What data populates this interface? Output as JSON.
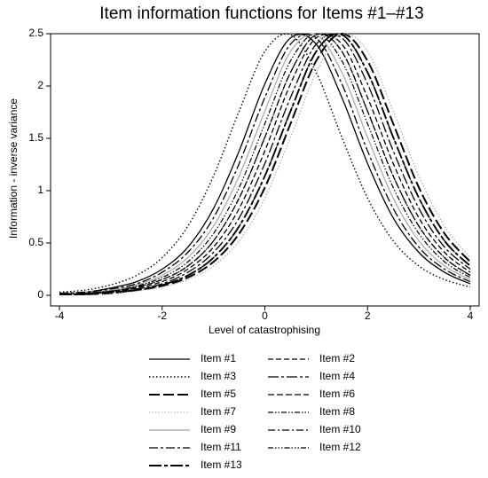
{
  "chart_data": {
    "type": "line",
    "title": "Item information functions for Items #1–#13",
    "x_label": "Level of catastrophising",
    "y_label": "Information - inverse variance",
    "x": [
      -4,
      -3.5,
      -3,
      -2.5,
      -2,
      -1.5,
      -1,
      -0.5,
      0,
      0.5,
      1,
      1.5,
      2,
      2.5,
      3,
      3.5,
      4
    ],
    "xlim": [
      -4,
      4
    ],
    "xticks": [
      -4,
      -2,
      0,
      2,
      4
    ],
    "ylim": [
      0,
      2.5
    ],
    "yticks": [
      0,
      0.5,
      1,
      1.5,
      2,
      2.5
    ],
    "grid": false,
    "series": [
      {
        "name": "Item #1",
        "color": "#000000",
        "values": [
          0.02,
          0.03,
          0.07,
          0.13,
          0.25,
          0.46,
          0.83,
          1.38,
          2.02,
          2.46,
          2.4,
          1.89,
          1.26,
          0.74,
          0.41,
          0.22,
          0.11
        ]
      },
      {
        "name": "Item #2",
        "color": "#000000",
        "values": [
          0.01,
          0.02,
          0.03,
          0.07,
          0.13,
          0.25,
          0.46,
          0.83,
          1.38,
          2.02,
          2.46,
          2.4,
          1.89,
          1.26,
          0.74,
          0.41,
          0.22
        ]
      },
      {
        "name": "Item #3",
        "color": "#000000",
        "values": [
          0.03,
          0.05,
          0.1,
          0.19,
          0.36,
          0.66,
          1.14,
          1.76,
          2.33,
          2.49,
          2.13,
          1.51,
          0.93,
          0.52,
          0.28,
          0.15,
          0.08
        ]
      },
      {
        "name": "Item #4",
        "color": "#000000",
        "values": [
          0.01,
          0.02,
          0.03,
          0.06,
          0.11,
          0.22,
          0.41,
          0.74,
          1.26,
          1.89,
          2.4,
          2.46,
          2.02,
          1.38,
          0.83,
          0.46,
          0.25
        ]
      },
      {
        "name": "Item #5",
        "color": "#000000",
        "values": [
          0.01,
          0.01,
          0.02,
          0.05,
          0.09,
          0.17,
          0.32,
          0.59,
          1.03,
          1.64,
          2.24,
          2.5,
          2.24,
          1.64,
          1.03,
          0.59,
          0.32
        ]
      },
      {
        "name": "Item #6",
        "color": "#000000",
        "values": [
          0.01,
          0.02,
          0.04,
          0.08,
          0.15,
          0.28,
          0.52,
          0.93,
          1.51,
          2.13,
          2.49,
          2.33,
          1.76,
          1.14,
          0.66,
          0.36,
          0.19
        ]
      },
      {
        "name": "Item #7",
        "color": "#a6a6a6",
        "values": [
          0.01,
          0.01,
          0.02,
          0.04,
          0.08,
          0.15,
          0.28,
          0.52,
          0.93,
          1.51,
          2.13,
          2.49,
          2.33,
          1.76,
          1.14,
          0.66,
          0.36
        ]
      },
      {
        "name": "Item #8",
        "color": "#000000",
        "values": [
          0.01,
          0.02,
          0.05,
          0.09,
          0.17,
          0.32,
          0.59,
          1.03,
          1.64,
          2.24,
          2.5,
          2.24,
          1.64,
          1.03,
          0.59,
          0.32,
          0.17
        ]
      },
      {
        "name": "Item #9",
        "color": "#b0b0b0",
        "values": [
          0.01,
          0.03,
          0.05,
          0.1,
          0.19,
          0.36,
          0.66,
          1.14,
          1.76,
          2.33,
          2.49,
          2.13,
          1.51,
          0.93,
          0.52,
          0.28,
          0.15
        ]
      },
      {
        "name": "Item #10",
        "color": "#000000",
        "values": [
          0.01,
          0.01,
          0.03,
          0.05,
          0.1,
          0.19,
          0.36,
          0.66,
          1.14,
          1.76,
          2.33,
          2.49,
          2.13,
          1.51,
          0.93,
          0.52,
          0.28
        ]
      },
      {
        "name": "Item #11",
        "color": "#000000",
        "values": [
          0.02,
          0.03,
          0.06,
          0.11,
          0.22,
          0.41,
          0.74,
          1.26,
          1.89,
          2.4,
          2.46,
          2.02,
          1.38,
          0.83,
          0.46,
          0.25,
          0.13
        ]
      },
      {
        "name": "Item #12",
        "color": "#000000",
        "values": [
          0.01,
          0.02,
          0.04,
          0.08,
          0.15,
          0.28,
          0.52,
          0.93,
          1.51,
          2.13,
          2.49,
          2.33,
          1.76,
          1.14,
          0.66,
          0.36,
          0.19
        ]
      },
      {
        "name": "Item #13",
        "color": "#000000",
        "values": [
          0.01,
          0.01,
          0.03,
          0.05,
          0.1,
          0.19,
          0.36,
          0.66,
          1.14,
          1.76,
          2.33,
          2.49,
          2.13,
          1.51,
          0.93,
          0.52,
          0.28
        ]
      }
    ]
  }
}
